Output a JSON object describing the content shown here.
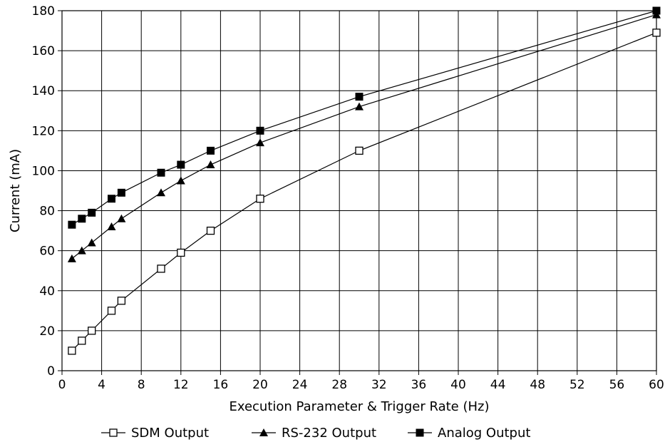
{
  "chart_data": {
    "type": "line",
    "title": "",
    "xlabel": "Execution Parameter & Trigger Rate (Hz)",
    "ylabel": "Current (mA)",
    "xlim": [
      0,
      60
    ],
    "ylim": [
      0,
      180
    ],
    "x_ticks": [
      0,
      4,
      8,
      12,
      16,
      20,
      24,
      28,
      32,
      36,
      40,
      44,
      48,
      52,
      56,
      60
    ],
    "y_ticks": [
      0,
      20,
      40,
      60,
      80,
      100,
      120,
      140,
      160,
      180
    ],
    "grid": true,
    "legend_position": "bottom",
    "series": [
      {
        "name": "SDM Output",
        "marker": "open-square",
        "x": [
          1,
          2,
          3,
          5,
          6,
          10,
          12,
          15,
          20,
          30,
          60
        ],
        "y": [
          10,
          15,
          20,
          30,
          35,
          51,
          59,
          70,
          86,
          110,
          169
        ]
      },
      {
        "name": "RS-232 Output",
        "marker": "filled-triangle",
        "x": [
          1,
          2,
          3,
          5,
          6,
          10,
          12,
          15,
          20,
          30,
          60
        ],
        "y": [
          56,
          60,
          64,
          72,
          76,
          89,
          95,
          103,
          114,
          132,
          178
        ]
      },
      {
        "name": "Analog Output",
        "marker": "filled-square",
        "x": [
          1,
          2,
          3,
          5,
          6,
          10,
          12,
          15,
          20,
          30,
          60
        ],
        "y": [
          73,
          76,
          79,
          86,
          89,
          99,
          103,
          110,
          120,
          137,
          180
        ]
      }
    ]
  }
}
